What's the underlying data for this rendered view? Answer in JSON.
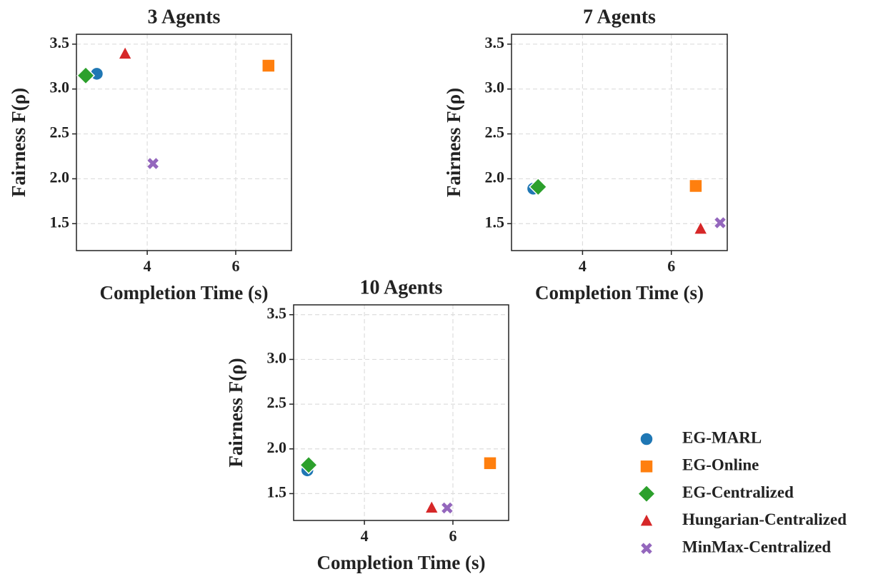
{
  "chart_data": [
    {
      "type": "scatter",
      "title": "3 Agents",
      "x_label": "Completion Time (s)",
      "y_label": "Fairness F(ρ)",
      "xlim": [
        2.4,
        7.26
      ],
      "ylim": [
        1.2,
        3.61
      ],
      "xticks": [
        4,
        6
      ],
      "yticks": [
        1.5,
        {
          "value": 2,
          "label": "2.0"
        },
        2.5,
        {
          "value": 3,
          "label": "3.0"
        },
        3.5
      ],
      "grid": true,
      "series": [
        {
          "color": "#1f77b4",
          "marker": "circle",
          "x": [
            2.86
          ],
          "values": [
            3.17
          ]
        },
        {
          "color": "#ff7f0e",
          "marker": "square",
          "x": [
            6.74
          ],
          "values": [
            3.26
          ]
        },
        {
          "color": "#2ca02c",
          "marker": "diamond",
          "x": [
            2.61
          ],
          "values": [
            3.15
          ]
        },
        {
          "color": "#d62728",
          "marker": "triangle",
          "x": [
            3.5
          ],
          "values": [
            3.39
          ]
        },
        {
          "color": "#9467bd",
          "marker": "x",
          "x": [
            4.13
          ],
          "values": [
            2.17
          ]
        }
      ]
    },
    {
      "type": "scatter",
      "title": "7 Agents",
      "x_label": "Completion Time (s)",
      "y_label": "Fairness F(ρ)",
      "xlim": [
        2.4,
        7.26
      ],
      "ylim": [
        1.2,
        3.61
      ],
      "xticks": [
        4,
        6
      ],
      "yticks": [
        1.5,
        {
          "value": 2,
          "label": "2.0"
        },
        2.5,
        {
          "value": 3,
          "label": "3.0"
        },
        3.5
      ],
      "grid": true,
      "series": [
        {
          "color": "#1f77b4",
          "marker": "circle",
          "x": [
            2.89
          ],
          "values": [
            1.89
          ]
        },
        {
          "color": "#ff7f0e",
          "marker": "square",
          "x": [
            6.55
          ],
          "values": [
            1.92
          ]
        },
        {
          "color": "#2ca02c",
          "marker": "diamond",
          "x": [
            3.0
          ],
          "values": [
            1.91
          ]
        },
        {
          "color": "#d62728",
          "marker": "triangle",
          "x": [
            6.66
          ],
          "values": [
            1.44
          ]
        },
        {
          "color": "#9467bd",
          "marker": "x",
          "x": [
            7.1
          ],
          "values": [
            1.51
          ]
        }
      ]
    },
    {
      "type": "scatter",
      "title": "10 Agents",
      "x_label": "Completion Time (s)",
      "y_label": "Fairness F(ρ)",
      "xlim": [
        2.4,
        7.26
      ],
      "ylim": [
        1.2,
        3.61
      ],
      "xticks": [
        4,
        6
      ],
      "yticks": [
        1.5,
        {
          "value": 2,
          "label": "2.0"
        },
        2.5,
        {
          "value": 3,
          "label": "3.0"
        },
        3.5
      ],
      "grid": true,
      "series": [
        {
          "name": "EG-MARL",
          "color": "#1f77b4",
          "marker": "circle",
          "x": [
            2.71
          ],
          "values": [
            1.76
          ]
        },
        {
          "name": "EG-Online",
          "color": "#ff7f0e",
          "marker": "square",
          "x": [
            6.84
          ],
          "values": [
            1.84
          ]
        },
        {
          "name": "EG-Centralized",
          "color": "#2ca02c",
          "marker": "diamond",
          "x": [
            2.74
          ],
          "values": [
            1.82
          ]
        },
        {
          "name": "Hungarian-Centralized",
          "color": "#d62728",
          "marker": "triangle",
          "x": [
            5.52
          ],
          "values": [
            1.34
          ]
        },
        {
          "name": "MinMax-Centralized",
          "color": "#9467bd",
          "marker": "x",
          "x": [
            5.87
          ],
          "values": [
            1.34
          ]
        }
      ]
    }
  ]
}
